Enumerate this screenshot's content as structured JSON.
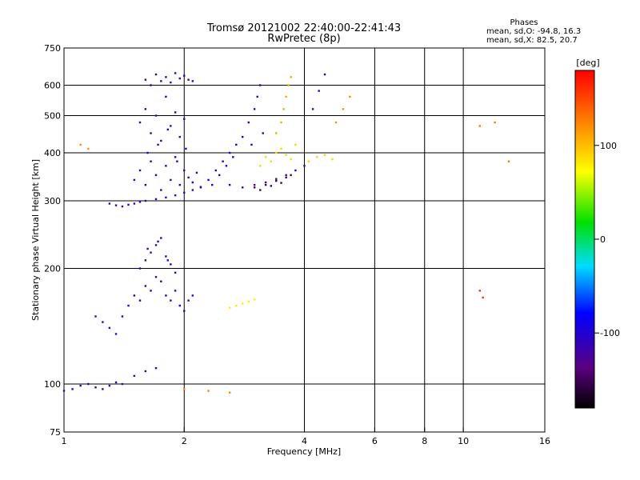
{
  "chart_data": {
    "type": "scatter",
    "title": "Tromsø 20121002 22:40:00-22:41:43",
    "subtitle": "RwPretec (8p)",
    "xlabel": "Frequency [MHz]",
    "ylabel": "Stationary phase Virtual Height [km]",
    "x_scale": "log",
    "y_scale": "log",
    "xlim": [
      1,
      16
    ],
    "ylim": [
      75,
      750
    ],
    "x_ticks": [
      1,
      2,
      4,
      6,
      8,
      10,
      16
    ],
    "y_ticks": [
      75,
      100,
      200,
      300,
      400,
      500,
      600,
      750
    ],
    "x_grid": [
      2,
      4,
      6,
      8,
      10
    ],
    "y_grid": [
      100,
      200,
      300,
      400,
      500,
      600
    ],
    "grid": true,
    "info_title": "Phases",
    "info_lines": [
      "mean, sd,O:  -94.8, 16.3",
      "mean, sd,X:   82.5, 20.7"
    ],
    "colorbar": {
      "label": "[deg]",
      "range": [
        -180,
        180
      ],
      "ticks": [
        100,
        0,
        -100
      ]
    },
    "series": [
      {
        "x": [
          1.6,
          1.7,
          1.75,
          1.8,
          1.85,
          1.9,
          1.95,
          2.0,
          2.05,
          2.1,
          1.65
        ],
        "y": [
          620,
          640,
          615,
          630,
          610,
          645,
          625,
          635,
          620,
          615,
          600
        ],
        "phase": -115
      },
      {
        "x": [
          1.55,
          1.6,
          1.65,
          1.7,
          1.75,
          1.8,
          1.85,
          1.9,
          1.95,
          2.0,
          1.62,
          1.72,
          1.82,
          1.92,
          2.02
        ],
        "y": [
          480,
          520,
          450,
          500,
          430,
          560,
          470,
          510,
          440,
          490,
          400,
          420,
          460,
          380,
          410
        ],
        "phase": -110
      },
      {
        "x": [
          1.5,
          1.55,
          1.6,
          1.65,
          1.7,
          1.75,
          1.8,
          1.85,
          1.9,
          1.95,
          2.0,
          2.05,
          2.1,
          2.15,
          2.2
        ],
        "y": [
          340,
          360,
          330,
          380,
          350,
          320,
          370,
          340,
          390,
          330,
          360,
          345,
          335,
          355,
          325
        ],
        "phase": -108
      },
      {
        "x": [
          1.3,
          1.35,
          1.4,
          1.45,
          1.5,
          1.55,
          1.6,
          1.7,
          1.8,
          1.9,
          2.0,
          2.1,
          2.2
        ],
        "y": [
          295,
          292,
          290,
          293,
          295,
          298,
          300,
          303,
          306,
          310,
          315,
          320,
          326
        ],
        "phase": -115
      },
      {
        "x": [
          2.3,
          2.4,
          2.5,
          2.6,
          2.7,
          2.8,
          2.35,
          2.45,
          2.55,
          2.65
        ],
        "y": [
          340,
          360,
          380,
          400,
          420,
          440,
          330,
          350,
          370,
          390
        ],
        "phase": -100
      },
      {
        "x": [
          2.9,
          3.0,
          3.05,
          3.1,
          3.15,
          2.95
        ],
        "y": [
          480,
          520,
          560,
          600,
          450,
          420
        ],
        "phase": -105
      },
      {
        "x": [
          2.6,
          2.8,
          3.0,
          3.2,
          3.4,
          3.6,
          3.8,
          4.0
        ],
        "y": [
          330,
          325,
          330,
          335,
          342,
          350,
          360,
          370
        ],
        "phase": -120
      },
      {
        "x": [
          3.0,
          3.1,
          3.2,
          3.3,
          3.4,
          3.5,
          3.6,
          3.7
        ],
        "y": [
          325,
          320,
          330,
          328,
          338,
          334,
          345,
          350
        ],
        "phase": -150
      },
      {
        "x": [
          3.1,
          3.2,
          3.3,
          3.4,
          3.5,
          3.6,
          3.7,
          3.8,
          4.1,
          4.3,
          4.5,
          4.7
        ],
        "y": [
          370,
          390,
          380,
          400,
          410,
          395,
          385,
          420,
          380,
          390,
          395,
          385
        ],
        "phase": 90
      },
      {
        "x": [
          3.4,
          3.5,
          3.55,
          3.6,
          3.65,
          3.7
        ],
        "y": [
          450,
          480,
          520,
          560,
          600,
          630
        ],
        "phase": 110
      },
      {
        "x": [
          4.8,
          5.0,
          5.2
        ],
        "y": [
          480,
          520,
          560
        ],
        "phase": 120
      },
      {
        "x": [
          4.2,
          4.35,
          4.5
        ],
        "y": [
          520,
          580,
          640
        ],
        "phase": -115
      },
      {
        "x": [
          1.2,
          1.25,
          1.3,
          1.35,
          1.4,
          1.45,
          1.5,
          1.55,
          1.6,
          1.65,
          1.7,
          1.75,
          1.8,
          1.85,
          1.9,
          1.95,
          2.0,
          2.05,
          2.1
        ],
        "y": [
          150,
          145,
          140,
          135,
          150,
          160,
          170,
          165,
          180,
          175,
          190,
          185,
          170,
          165,
          175,
          160,
          155,
          165,
          170
        ],
        "phase": -112
      },
      {
        "x": [
          1.55,
          1.6,
          1.65,
          1.7,
          1.75,
          1.8,
          1.85,
          1.9,
          1.62,
          1.72,
          1.82
        ],
        "y": [
          200,
          210,
          220,
          230,
          240,
          215,
          205,
          195,
          225,
          235,
          210
        ],
        "phase": -110
      },
      {
        "x": [
          1.0,
          1.05,
          1.1,
          1.15,
          1.2,
          1.25,
          1.3,
          1.35,
          1.4,
          1.5,
          1.6,
          1.7
        ],
        "y": [
          96,
          97,
          99,
          100,
          98,
          97,
          99,
          101,
          100,
          105,
          108,
          110
        ],
        "phase": -110
      },
      {
        "x": [
          2.6,
          2.7,
          2.8,
          2.9,
          3.0
        ],
        "y": [
          158,
          160,
          162,
          164,
          166
        ],
        "phase": 80
      },
      {
        "x": [
          2.0,
          2.3,
          2.6
        ],
        "y": [
          97,
          96,
          95
        ],
        "phase": 125
      },
      {
        "x": [
          11.0,
          12.0,
          13.0
        ],
        "y": [
          470,
          480,
          380
        ],
        "phase": 130
      },
      {
        "x": [
          11.0,
          11.2
        ],
        "y": [
          175,
          168
        ],
        "phase": 160
      },
      {
        "x": [
          1.1,
          1.15
        ],
        "y": [
          420,
          410
        ],
        "phase": 120
      }
    ]
  }
}
